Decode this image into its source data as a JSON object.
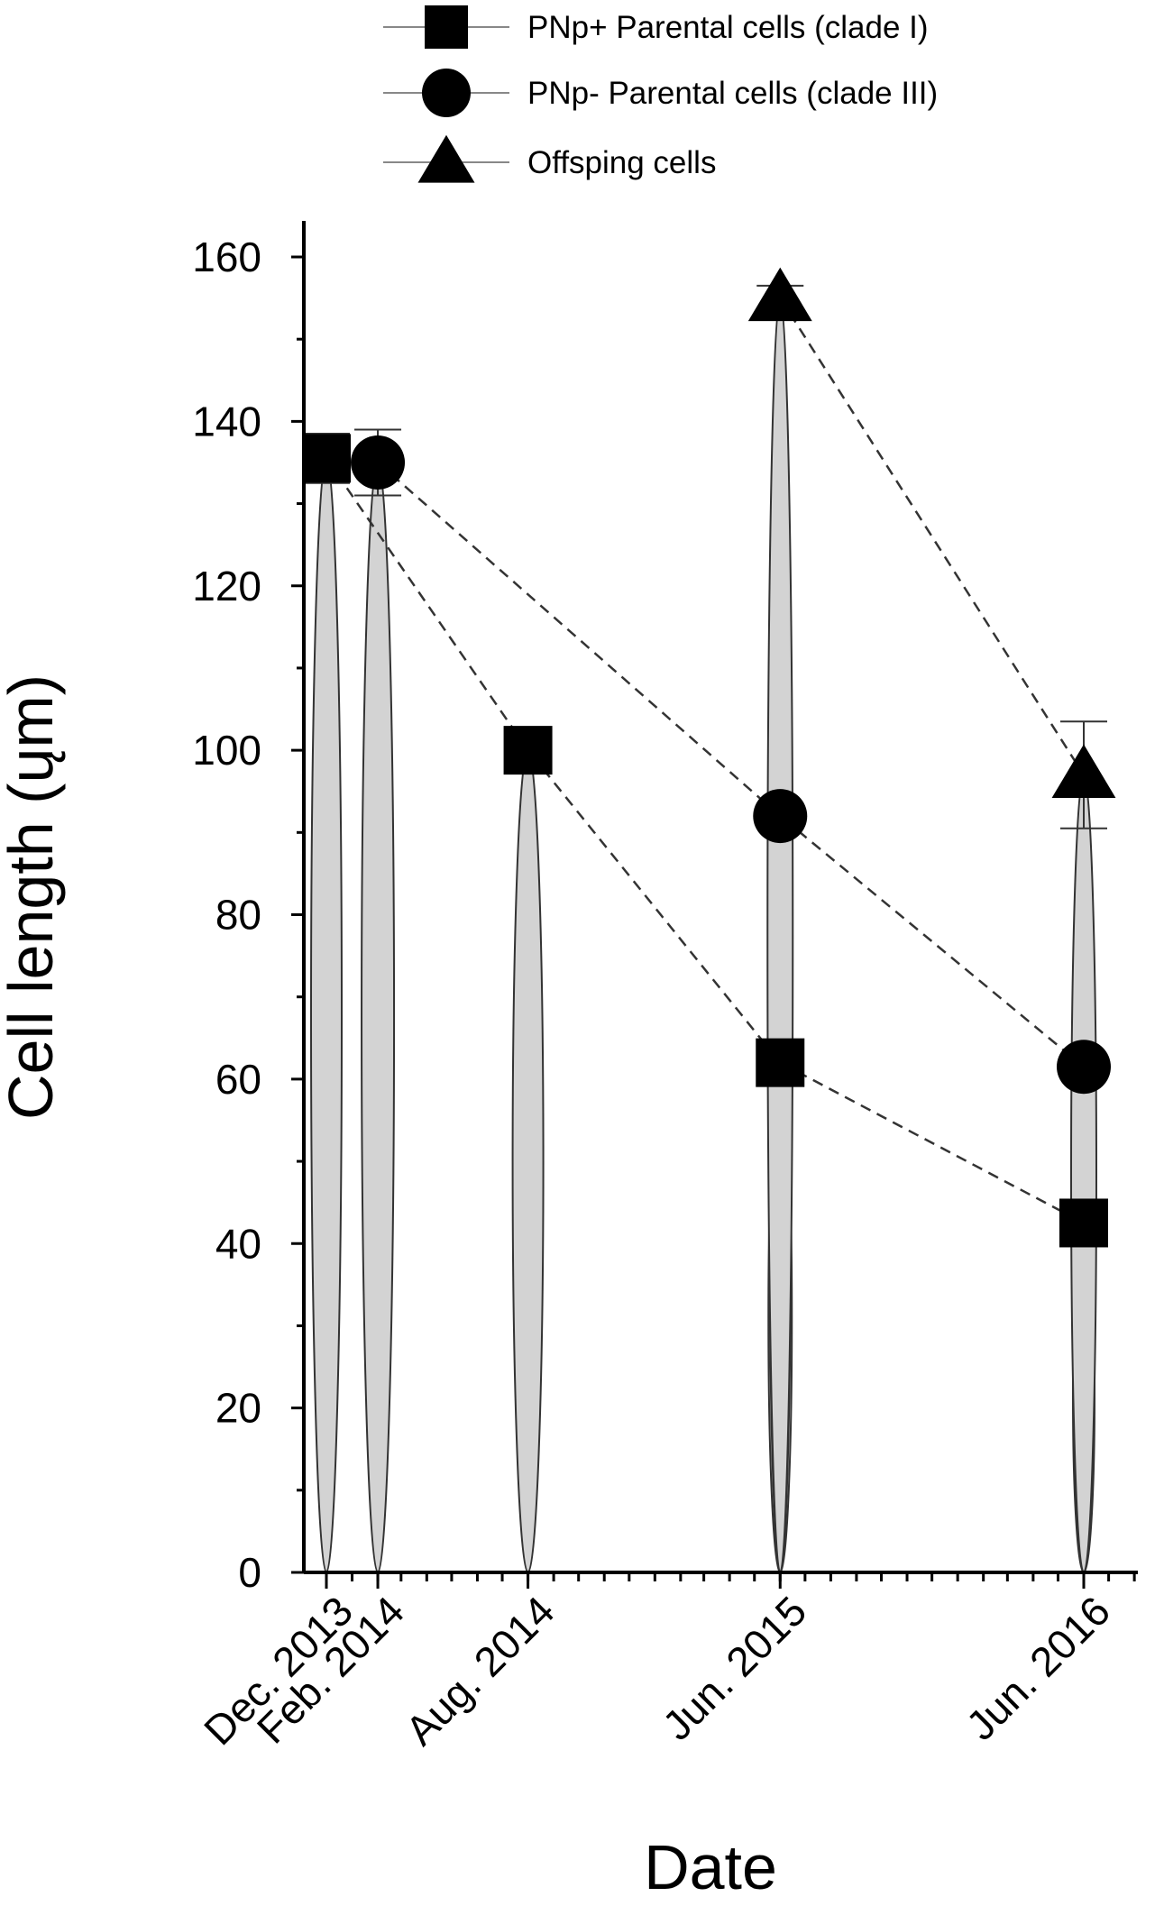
{
  "chart_data": {
    "type": "scatter",
    "xlabel": "Date",
    "ylabel": "Cell length (ųm)",
    "ylim": [
      0,
      165
    ],
    "yticks": [
      0,
      20,
      40,
      60,
      80,
      100,
      120,
      140,
      160
    ],
    "x_range": [
      "2013-11-01",
      "2016-09-15"
    ],
    "categories": [
      "Dec. 2013",
      "Feb. 2014",
      "Aug. 2014",
      "Jun. 2015",
      "Jun. 2016"
    ],
    "dates": [
      "2013-12-01",
      "2014-02-01",
      "2014-08-01",
      "2015-06-01",
      "2016-06-01"
    ],
    "legend": "top",
    "series": [
      {
        "name": "PNp+ Parental cells (clade I)",
        "marker": "square",
        "x": [
          "2013-12-01",
          "2014-08-01",
          "2015-06-01",
          "2016-06-01"
        ],
        "values": [
          135.5,
          100,
          62,
          42.5
        ],
        "error": [
          3,
          0,
          0,
          0
        ],
        "ellipse_width": [
          17,
          17,
          13,
          12
        ]
      },
      {
        "name": "PNp-  Parental cells (clade III)",
        "marker": "circle",
        "x": [
          "2014-02-01",
          "2015-06-01",
          "2016-06-01"
        ],
        "values": [
          135,
          92,
          61.5
        ],
        "error": [
          4,
          0,
          0
        ],
        "ellipse_width": [
          18,
          12,
          12
        ]
      },
      {
        "name": "Offsping cells",
        "marker": "triangle",
        "x": [
          "2015-06-01",
          "2016-06-01"
        ],
        "values": [
          155,
          97
        ],
        "error": [
          1.5,
          6.5
        ],
        "ellipse_width": [
          14,
          14
        ]
      }
    ],
    "colors": {
      "marker": "#000000",
      "ellipse_fill": "#d3d3d3",
      "ellipse_stroke": "#333333",
      "line": "#333333"
    }
  }
}
